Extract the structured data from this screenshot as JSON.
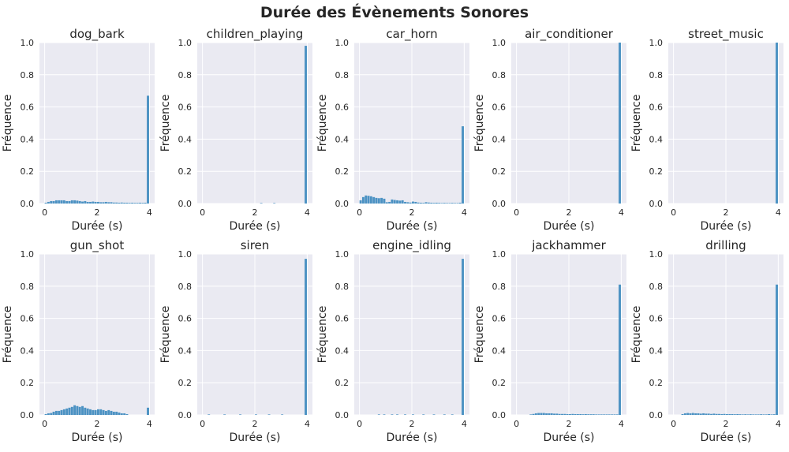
{
  "figure": {
    "title": "Durée des Évènements Sonores"
  },
  "style": {
    "panel_bg": "#eaeaf2",
    "grid_color": "#ffffff",
    "bar_color": "#4c92c3",
    "text_color": "#262626"
  },
  "chart_data": [
    {
      "type": "bar",
      "title": "dog_bark",
      "xlabel": "Durée (s)",
      "ylabel": "Fréquence",
      "xlim": [
        -0.2,
        4.2
      ],
      "ylim": [
        0,
        1.0
      ],
      "xticks": [
        "0",
        "2",
        "4"
      ],
      "yticks": [
        "0.0",
        "0.2",
        "0.4",
        "0.6",
        "0.8",
        "1.0"
      ],
      "grid": true,
      "bin_width": 0.1,
      "x": [
        0.05,
        0.15,
        0.25,
        0.35,
        0.45,
        0.55,
        0.65,
        0.75,
        0.85,
        0.95,
        1.05,
        1.15,
        1.25,
        1.35,
        1.45,
        1.55,
        1.65,
        1.75,
        1.85,
        1.95,
        2.05,
        2.15,
        2.25,
        2.35,
        2.45,
        2.55,
        2.65,
        2.75,
        2.85,
        2.95,
        3.05,
        3.15,
        3.25,
        3.35,
        3.45,
        3.55,
        3.65,
        3.75,
        3.85,
        3.95
      ],
      "values": [
        0.005,
        0.01,
        0.015,
        0.015,
        0.02,
        0.02,
        0.02,
        0.02,
        0.015,
        0.015,
        0.02,
        0.02,
        0.018,
        0.015,
        0.012,
        0.015,
        0.01,
        0.01,
        0.012,
        0.01,
        0.01,
        0.008,
        0.008,
        0.01,
        0.008,
        0.008,
        0.006,
        0.006,
        0.005,
        0.006,
        0.005,
        0.005,
        0.004,
        0.005,
        0.004,
        0.004,
        0.005,
        0.004,
        0.005,
        0.67
      ]
    },
    {
      "type": "bar",
      "title": "children_playing",
      "xlabel": "Durée (s)",
      "ylabel": "Fréquence",
      "xlim": [
        -0.2,
        4.2
      ],
      "ylim": [
        0,
        1.0
      ],
      "xticks": [
        "0",
        "2",
        "4"
      ],
      "yticks": [
        "0.0",
        "0.2",
        "0.4",
        "0.6",
        "0.8",
        "1.0"
      ],
      "grid": true,
      "bin_width": 0.1,
      "x": [
        2.25,
        2.75,
        3.95
      ],
      "values": [
        0.003,
        0.003,
        0.98
      ]
    },
    {
      "type": "bar",
      "title": "car_horn",
      "xlabel": "Durée (s)",
      "ylabel": "Fréquence",
      "xlim": [
        -0.2,
        4.2
      ],
      "ylim": [
        0,
        1.0
      ],
      "xticks": [
        "0",
        "2",
        "4"
      ],
      "yticks": [
        "0.0",
        "0.2",
        "0.4",
        "0.6",
        "0.8",
        "1.0"
      ],
      "grid": true,
      "bin_width": 0.1,
      "x": [
        0.05,
        0.15,
        0.25,
        0.35,
        0.45,
        0.55,
        0.65,
        0.75,
        0.85,
        0.95,
        1.05,
        1.15,
        1.25,
        1.35,
        1.45,
        1.55,
        1.65,
        1.75,
        1.85,
        1.95,
        2.05,
        2.15,
        2.25,
        2.35,
        2.45,
        2.55,
        2.65,
        2.75,
        2.85,
        2.95,
        3.05,
        3.15,
        3.25,
        3.35,
        3.45,
        3.55,
        3.65,
        3.75,
        3.85,
        3.95
      ],
      "values": [
        0.02,
        0.04,
        0.05,
        0.048,
        0.045,
        0.04,
        0.035,
        0.033,
        0.035,
        0.03,
        0.008,
        0.01,
        0.025,
        0.022,
        0.02,
        0.018,
        0.02,
        0.01,
        0.008,
        0.006,
        0.012,
        0.01,
        0.006,
        0.005,
        0.004,
        0.008,
        0.006,
        0.005,
        0.004,
        0.005,
        0.004,
        0.003,
        0.004,
        0.003,
        0.003,
        0.004,
        0.003,
        0.003,
        0.005,
        0.48
      ]
    },
    {
      "type": "bar",
      "title": "air_conditioner",
      "xlabel": "Durée (s)",
      "ylabel": "Fréquence",
      "xlim": [
        -0.2,
        4.2
      ],
      "ylim": [
        0,
        1.0
      ],
      "xticks": [
        "0",
        "2",
        "4"
      ],
      "yticks": [
        "0.0",
        "0.2",
        "0.4",
        "0.6",
        "0.8",
        "1.0"
      ],
      "grid": true,
      "bin_width": 0.1,
      "x": [
        3.95
      ],
      "values": [
        1.0
      ]
    },
    {
      "type": "bar",
      "title": "street_music",
      "xlabel": "Durée (s)",
      "ylabel": "Fréquence",
      "xlim": [
        -0.2,
        4.2
      ],
      "ylim": [
        0,
        1.0
      ],
      "xticks": [
        "0",
        "2",
        "4"
      ],
      "yticks": [
        "0.0",
        "0.2",
        "0.4",
        "0.6",
        "0.8",
        "1.0"
      ],
      "grid": true,
      "bin_width": 0.1,
      "x": [
        3.95
      ],
      "values": [
        1.0
      ]
    },
    {
      "type": "bar",
      "title": "gun_shot",
      "xlabel": "Durée (s)",
      "ylabel": "Fréquence",
      "xlim": [
        -0.2,
        4.2
      ],
      "ylim": [
        0,
        1.0
      ],
      "xticks": [
        "0",
        "2",
        "4"
      ],
      "yticks": [
        "0.0",
        "0.2",
        "0.4",
        "0.6",
        "0.8",
        "1.0"
      ],
      "grid": true,
      "bin_width": 0.1,
      "x": [
        0.05,
        0.15,
        0.25,
        0.35,
        0.45,
        0.55,
        0.65,
        0.75,
        0.85,
        0.95,
        1.05,
        1.15,
        1.25,
        1.35,
        1.45,
        1.55,
        1.65,
        1.75,
        1.85,
        1.95,
        2.05,
        2.15,
        2.25,
        2.35,
        2.45,
        2.55,
        2.65,
        2.75,
        2.85,
        2.95,
        3.05,
        3.15,
        3.95
      ],
      "values": [
        0.005,
        0.01,
        0.012,
        0.02,
        0.025,
        0.025,
        0.03,
        0.035,
        0.04,
        0.045,
        0.05,
        0.06,
        0.055,
        0.05,
        0.055,
        0.045,
        0.04,
        0.035,
        0.03,
        0.03,
        0.035,
        0.035,
        0.03,
        0.025,
        0.03,
        0.025,
        0.02,
        0.02,
        0.015,
        0.01,
        0.01,
        0.005,
        0.045
      ]
    },
    {
      "type": "bar",
      "title": "siren",
      "xlabel": "Durée (s)",
      "ylabel": "Fréquence",
      "xlim": [
        -0.2,
        4.2
      ],
      "ylim": [
        0,
        1.0
      ],
      "xticks": [
        "0",
        "2",
        "4"
      ],
      "yticks": [
        "0.0",
        "0.2",
        "0.4",
        "0.6",
        "0.8",
        "1.0"
      ],
      "grid": true,
      "bin_width": 0.1,
      "x": [
        0.25,
        0.85,
        1.45,
        2.05,
        2.55,
        3.05,
        3.95
      ],
      "values": [
        0.003,
        0.003,
        0.003,
        0.003,
        0.003,
        0.003,
        0.97
      ]
    },
    {
      "type": "bar",
      "title": "engine_idling",
      "xlabel": "Durée (s)",
      "ylabel": "Fréquence",
      "xlim": [
        -0.2,
        4.2
      ],
      "ylim": [
        0,
        1.0
      ],
      "xticks": [
        "0",
        "2",
        "4"
      ],
      "yticks": [
        "0.0",
        "0.2",
        "0.4",
        "0.6",
        "0.8",
        "1.0"
      ],
      "grid": true,
      "bin_width": 0.1,
      "x": [
        0.75,
        0.95,
        1.25,
        1.45,
        1.75,
        2.05,
        2.45,
        2.85,
        3.25,
        3.55,
        3.95
      ],
      "values": [
        0.003,
        0.003,
        0.003,
        0.003,
        0.003,
        0.003,
        0.003,
        0.003,
        0.003,
        0.003,
        0.97
      ]
    },
    {
      "type": "bar",
      "title": "jackhammer",
      "xlabel": "Durée (s)",
      "ylabel": "Fréquence",
      "xlim": [
        -0.2,
        4.2
      ],
      "ylim": [
        0,
        1.0
      ],
      "xticks": [
        "0",
        "2",
        "4"
      ],
      "yticks": [
        "0.0",
        "0.2",
        "0.4",
        "0.6",
        "0.8",
        "1.0"
      ],
      "grid": true,
      "bin_width": 0.1,
      "x": [
        0.55,
        0.65,
        0.75,
        0.85,
        0.95,
        1.05,
        1.15,
        1.25,
        1.35,
        1.45,
        1.55,
        1.65,
        1.75,
        1.85,
        1.95,
        2.05,
        2.15,
        2.25,
        2.35,
        2.45,
        2.55,
        2.65,
        2.75,
        2.85,
        2.95,
        3.05,
        3.15,
        3.25,
        3.35,
        3.45,
        3.55,
        3.65,
        3.75,
        3.85,
        3.95
      ],
      "values": [
        0.003,
        0.006,
        0.01,
        0.012,
        0.012,
        0.012,
        0.01,
        0.01,
        0.01,
        0.008,
        0.008,
        0.006,
        0.006,
        0.006,
        0.005,
        0.005,
        0.006,
        0.005,
        0.005,
        0.005,
        0.004,
        0.005,
        0.004,
        0.004,
        0.004,
        0.003,
        0.003,
        0.003,
        0.003,
        0.003,
        0.003,
        0.003,
        0.003,
        0.003,
        0.81
      ]
    },
    {
      "type": "bar",
      "title": "drilling",
      "xlabel": "Durée (s)",
      "ylabel": "Fréquence",
      "xlim": [
        -0.2,
        4.2
      ],
      "ylim": [
        0,
        1.0
      ],
      "xticks": [
        "0",
        "2",
        "4"
      ],
      "yticks": [
        "0.0",
        "0.2",
        "0.4",
        "0.6",
        "0.8",
        "1.0"
      ],
      "grid": true,
      "bin_width": 0.1,
      "x": [
        0.35,
        0.45,
        0.55,
        0.65,
        0.75,
        0.85,
        0.95,
        1.05,
        1.15,
        1.25,
        1.35,
        1.45,
        1.55,
        1.65,
        1.75,
        1.85,
        1.95,
        2.05,
        2.15,
        2.25,
        2.35,
        2.45,
        2.55,
        2.65,
        2.75,
        2.85,
        2.95,
        3.05,
        3.15,
        3.25,
        3.35,
        3.45,
        3.55,
        3.65,
        3.75,
        3.85,
        3.95
      ],
      "values": [
        0.005,
        0.01,
        0.012,
        0.01,
        0.012,
        0.01,
        0.01,
        0.008,
        0.01,
        0.008,
        0.008,
        0.006,
        0.008,
        0.006,
        0.006,
        0.005,
        0.006,
        0.005,
        0.005,
        0.005,
        0.004,
        0.005,
        0.004,
        0.003,
        0.004,
        0.003,
        0.004,
        0.003,
        0.003,
        0.003,
        0.004,
        0.003,
        0.003,
        0.005,
        0.003,
        0.004,
        0.81
      ]
    }
  ]
}
